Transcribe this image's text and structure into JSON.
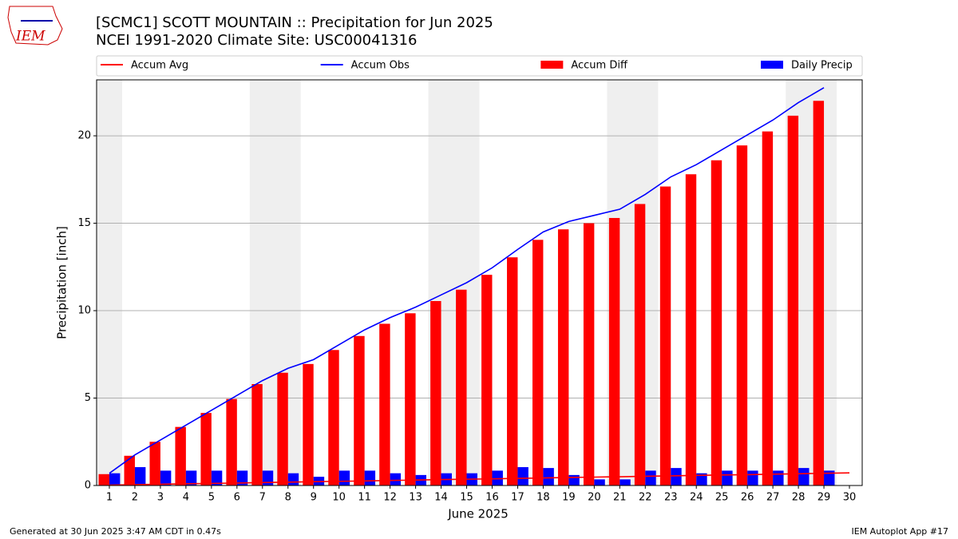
{
  "chart_data": {
    "type": "bar",
    "title": "[SCMC1] SCOTT MOUNTAIN :: Precipitation for Jun 2025",
    "subtitle": "NCEI 1991-2020 Climate Site: USC00041316",
    "xlabel": "June 2025",
    "ylabel": "Precipitation [inch]",
    "logo_text": "IEM",
    "footer_left": "Generated at 30 Jun 2025 3:47 AM CDT in 0.47s",
    "footer_right": "IEM Autoplot App #17",
    "x": [
      1,
      2,
      3,
      4,
      5,
      6,
      7,
      8,
      9,
      10,
      11,
      12,
      13,
      14,
      15,
      16,
      17,
      18,
      19,
      20,
      21,
      22,
      23,
      24,
      25,
      26,
      27,
      28,
      29,
      30
    ],
    "xlim": [
      0.5,
      30.5
    ],
    "xticks": [
      1,
      2,
      3,
      4,
      5,
      6,
      7,
      8,
      9,
      10,
      11,
      12,
      13,
      14,
      15,
      16,
      17,
      18,
      19,
      20,
      21,
      22,
      23,
      24,
      25,
      26,
      27,
      28,
      29,
      30
    ],
    "ylim": [
      0,
      23.2
    ],
    "yticks": [
      0,
      5,
      10,
      15,
      20
    ],
    "grid": true,
    "legend": "top",
    "series": [
      {
        "name": "Accum Avg",
        "kind": "line",
        "color": "#ff0000",
        "values": [
          0.02,
          0.05,
          0.07,
          0.1,
          0.12,
          0.14,
          0.17,
          0.19,
          0.22,
          0.24,
          0.26,
          0.29,
          0.31,
          0.34,
          0.36,
          0.38,
          0.41,
          0.43,
          0.46,
          0.48,
          0.5,
          0.53,
          0.55,
          0.58,
          0.6,
          0.62,
          0.65,
          0.67,
          0.7,
          0.72
        ]
      },
      {
        "name": "Accum Obs",
        "kind": "line",
        "color": "#0000ff",
        "values": [
          0.7,
          1.75,
          2.6,
          3.45,
          4.3,
          5.15,
          6.0,
          6.7,
          7.2,
          8.05,
          8.9,
          9.6,
          10.2,
          10.9,
          11.6,
          12.45,
          13.5,
          14.5,
          15.1,
          15.45,
          15.8,
          16.65,
          17.65,
          18.35,
          19.2,
          20.05,
          20.9,
          21.9,
          22.75,
          null
        ]
      },
      {
        "name": "Accum Diff",
        "kind": "bar",
        "offset": "left",
        "color": "#ff0000",
        "values": [
          0.65,
          1.7,
          2.5,
          3.35,
          4.15,
          4.95,
          5.8,
          6.45,
          6.95,
          7.75,
          8.55,
          9.25,
          9.85,
          10.55,
          11.2,
          12.05,
          13.05,
          14.05,
          14.65,
          15.0,
          15.3,
          16.1,
          17.1,
          17.8,
          18.6,
          19.45,
          20.25,
          21.15,
          22.0,
          null
        ]
      },
      {
        "name": "Daily Precip",
        "kind": "bar",
        "offset": "right",
        "color": "#0000ff",
        "values": [
          0.7,
          1.05,
          0.85,
          0.85,
          0.85,
          0.85,
          0.85,
          0.7,
          0.5,
          0.85,
          0.85,
          0.7,
          0.6,
          0.7,
          0.7,
          0.85,
          1.05,
          1.0,
          0.6,
          0.35,
          0.35,
          0.85,
          1.0,
          0.7,
          0.85,
          0.85,
          0.85,
          1.0,
          0.85,
          null
        ]
      }
    ]
  }
}
